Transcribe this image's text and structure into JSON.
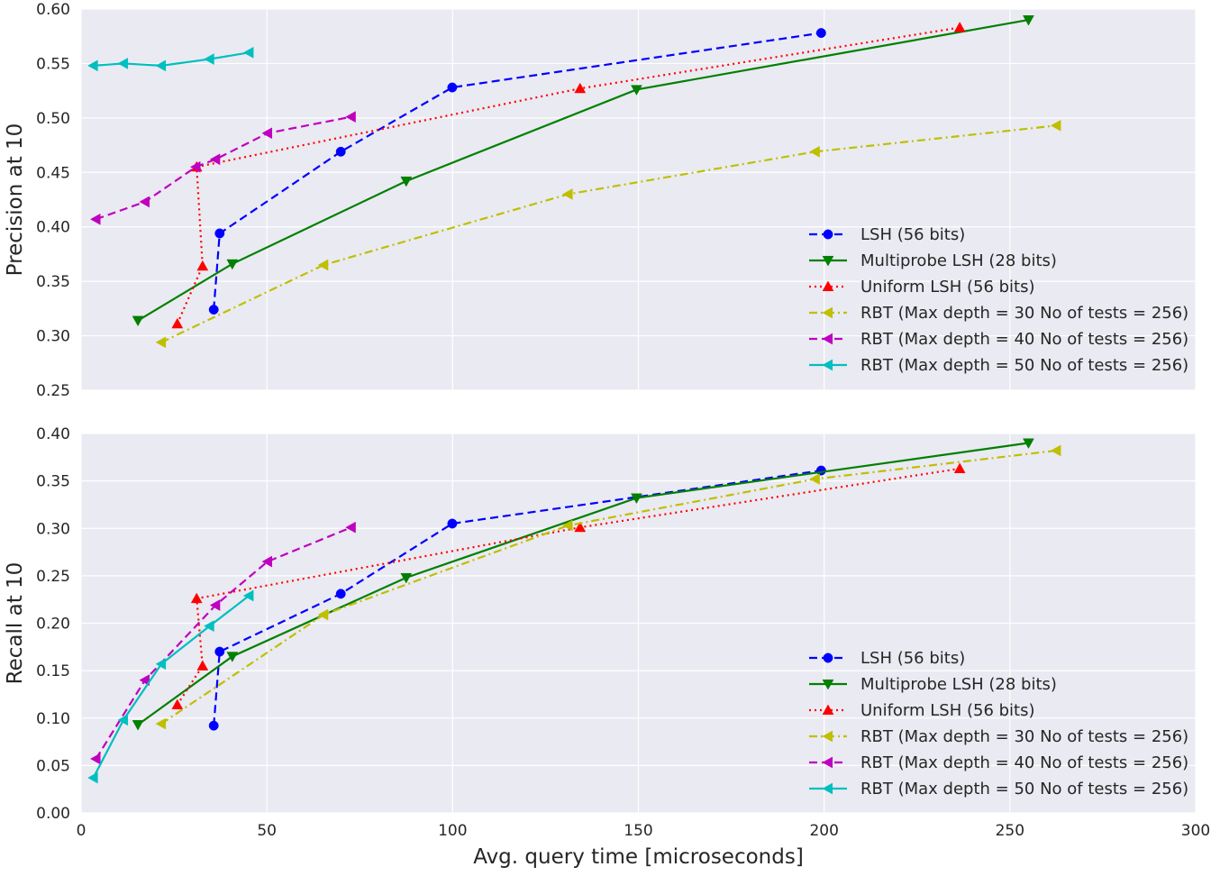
{
  "chart_data": [
    {
      "type": "line",
      "ylabel": "Precision at 10",
      "xlabel": "",
      "xlim": [
        0,
        300
      ],
      "ylim": [
        0.25,
        0.6
      ],
      "xticks": [
        "0",
        "50",
        "100",
        "150",
        "200",
        "250",
        "300"
      ],
      "yticks": [
        "0.25",
        "0.30",
        "0.35",
        "0.40",
        "0.45",
        "0.50",
        "0.55",
        "0.60"
      ],
      "grid": true,
      "legend_position": "lower-right",
      "series": [
        {
          "name": "LSH (56 bits)",
          "color": "#0000ff",
          "style": "dashed",
          "marker": "circle",
          "x": [
            35.7,
            37.3,
            69.9,
            99.9,
            199.2
          ],
          "y": [
            0.324,
            0.394,
            0.469,
            0.528,
            0.578
          ]
        },
        {
          "name": "Multiprobe LSH (28 bits)",
          "color": "#008000",
          "style": "solid",
          "marker": "triangle-down",
          "x": [
            15.3,
            40.7,
            87.5,
            149.5,
            255.0
          ],
          "y": [
            0.314,
            0.366,
            0.442,
            0.526,
            0.59
          ]
        },
        {
          "name": "Uniform LSH (56 bits)",
          "color": "#ff0000",
          "style": "dotted",
          "marker": "triangle-up",
          "x": [
            25.9,
            32.7,
            31.1,
            134.3,
            236.5
          ],
          "y": [
            0.311,
            0.364,
            0.455,
            0.527,
            0.583
          ]
        },
        {
          "name": "RBT (Max depth = 30 No of tests = 256)",
          "color": "#bfbf00",
          "style": "dashdot",
          "marker": "triangle-left",
          "x": [
            21.6,
            65.3,
            131.1,
            197.6,
            262.5
          ],
          "y": [
            0.294,
            0.365,
            0.43,
            0.469,
            0.493
          ]
        },
        {
          "name": "RBT (Max depth = 40 No of tests = 256)",
          "color": "#bf00bf",
          "style": "dashed",
          "marker": "triangle-left",
          "x": [
            4.0,
            17.2,
            30.9,
            36.2,
            50.2,
            72.7
          ],
          "y": [
            0.407,
            0.423,
            0.455,
            0.462,
            0.486,
            0.501
          ]
        },
        {
          "name": "RBT (Max depth = 50 No of tests = 256)",
          "color": "#00bfbf",
          "style": "solid",
          "marker": "triangle-left",
          "x": [
            3.3,
            11.4,
            21.6,
            34.6,
            45.2
          ],
          "y": [
            0.548,
            0.55,
            0.548,
            0.554,
            0.56
          ]
        }
      ]
    },
    {
      "type": "line",
      "ylabel": "Recall at 10",
      "xlabel": "Avg. query time [microseconds]",
      "xlim": [
        0,
        300
      ],
      "ylim": [
        0.0,
        0.4
      ],
      "xticks": [
        "0",
        "50",
        "100",
        "150",
        "200",
        "250",
        "300"
      ],
      "yticks": [
        "0.00",
        "0.05",
        "0.10",
        "0.15",
        "0.20",
        "0.25",
        "0.30",
        "0.35",
        "0.40"
      ],
      "grid": true,
      "legend_position": "lower-right",
      "series": [
        {
          "name": "LSH (56 bits)",
          "color": "#0000ff",
          "style": "dashed",
          "marker": "circle",
          "x": [
            35.7,
            37.3,
            69.9,
            99.9,
            199.2
          ],
          "y": [
            0.092,
            0.17,
            0.231,
            0.305,
            0.361
          ]
        },
        {
          "name": "Multiprobe LSH (28 bits)",
          "color": "#008000",
          "style": "solid",
          "marker": "triangle-down",
          "x": [
            15.3,
            40.7,
            87.5,
            149.5,
            255.0
          ],
          "y": [
            0.093,
            0.165,
            0.248,
            0.332,
            0.39
          ]
        },
        {
          "name": "Uniform LSH (56 bits)",
          "color": "#ff0000",
          "style": "dotted",
          "marker": "triangle-up",
          "x": [
            25.9,
            32.7,
            31.1,
            134.3,
            236.5
          ],
          "y": [
            0.114,
            0.155,
            0.226,
            0.301,
            0.363
          ]
        },
        {
          "name": "RBT (Max depth = 30 No of tests = 256)",
          "color": "#bfbf00",
          "style": "dashdot",
          "marker": "triangle-left",
          "x": [
            21.6,
            65.3,
            131.1,
            197.6,
            262.5
          ],
          "y": [
            0.094,
            0.209,
            0.303,
            0.352,
            0.382
          ]
        },
        {
          "name": "RBT (Max depth = 40 No of tests = 256)",
          "color": "#bf00bf",
          "style": "dashed",
          "marker": "triangle-left",
          "x": [
            4.0,
            17.2,
            36.2,
            50.2,
            72.7
          ],
          "y": [
            0.057,
            0.14,
            0.219,
            0.265,
            0.301
          ]
        },
        {
          "name": "RBT (Max depth = 50 No of tests = 256)",
          "color": "#00bfbf",
          "style": "solid",
          "marker": "triangle-left",
          "x": [
            3.3,
            11.4,
            21.6,
            34.6,
            45.2
          ],
          "y": [
            0.037,
            0.098,
            0.157,
            0.197,
            0.229
          ]
        }
      ]
    }
  ]
}
